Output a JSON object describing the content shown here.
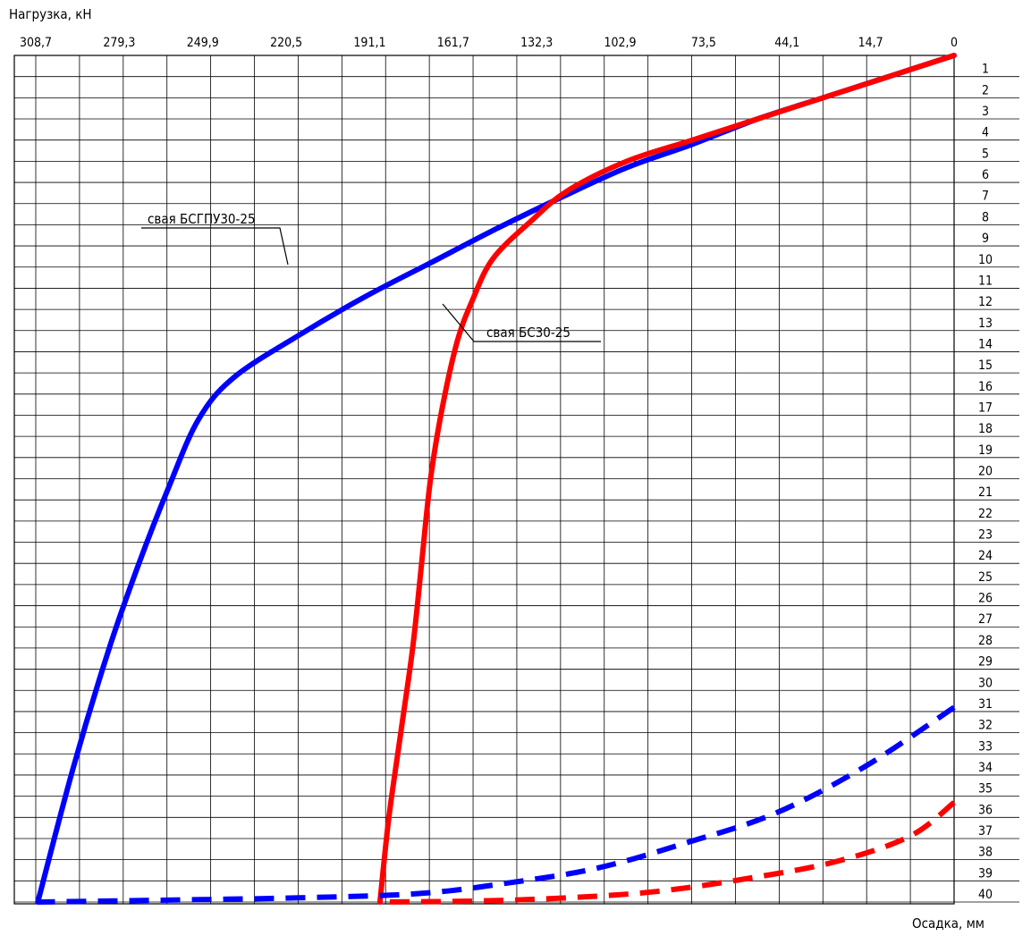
{
  "chart_data": {
    "type": "line",
    "ylabel": "Нагрузка, кН",
    "xlabel": "Осадка, мм",
    "top_ticks": [
      "308,7",
      "279,3",
      "249,9",
      "220,5",
      "191,1",
      "161,7",
      "132,3",
      "102,9",
      "73,5",
      "44,1",
      "14,7",
      "0"
    ],
    "right_ticks": [
      "1",
      "2",
      "3",
      "4",
      "5",
      "6",
      "7",
      "8",
      "9",
      "10",
      "11",
      "12",
      "13",
      "14",
      "15",
      "16",
      "17",
      "18",
      "19",
      "20",
      "21",
      "22",
      "23",
      "24",
      "25",
      "26",
      "27",
      "28",
      "29",
      "30",
      "31",
      "32",
      "33",
      "34",
      "35",
      "36",
      "37",
      "38",
      "39",
      "40"
    ],
    "xlim": [
      308.7,
      0
    ],
    "ylim": [
      0,
      40
    ],
    "grid": true,
    "series": [
      {
        "name": "свая БСГПУ30-25",
        "color": "#0000ff",
        "style": "solid",
        "points": [
          [
            0,
            0
          ],
          [
            22,
            1
          ],
          [
            44,
            2
          ],
          [
            66,
            3
          ],
          [
            88,
            4.2
          ],
          [
            110,
            5.3
          ],
          [
            132,
            6.7
          ],
          [
            154,
            8.2
          ],
          [
            176,
            9.8
          ],
          [
            198,
            11.4
          ],
          [
            220,
            13.2
          ],
          [
            242,
            15.2
          ],
          [
            254,
            17.2
          ],
          [
            264,
            20.4
          ],
          [
            274,
            24
          ],
          [
            284,
            28
          ],
          [
            296,
            33.6
          ],
          [
            308,
            40
          ]
        ]
      },
      {
        "name": "свая БС30-25",
        "color": "#ff0000",
        "style": "solid",
        "points": [
          [
            0,
            0
          ],
          [
            22,
            1
          ],
          [
            44,
            2
          ],
          [
            66,
            3
          ],
          [
            88,
            4
          ],
          [
            110,
            5
          ],
          [
            130,
            6.4
          ],
          [
            142,
            7.8
          ],
          [
            155,
            9.6
          ],
          [
            162,
            11.6
          ],
          [
            167,
            13.5
          ],
          [
            172,
            16.6
          ],
          [
            176,
            20
          ],
          [
            179,
            24
          ],
          [
            182,
            28
          ],
          [
            186,
            32
          ],
          [
            190,
            36
          ],
          [
            193,
            40
          ]
        ]
      },
      {
        "name": "",
        "color": "#0000ff",
        "style": "dashed",
        "points": [
          [
            0,
            30.8
          ],
          [
            30,
            33.6
          ],
          [
            60,
            35.8
          ],
          [
            90,
            37.2
          ],
          [
            120,
            38.4
          ],
          [
            150,
            39.1
          ],
          [
            180,
            39.6
          ],
          [
            220,
            39.8
          ],
          [
            260,
            39.9
          ],
          [
            308,
            40
          ]
        ]
      },
      {
        "name": "",
        "color": "#ff0000",
        "style": "dashed",
        "points": [
          [
            0,
            35.3
          ],
          [
            15,
            36.9
          ],
          [
            40,
            38.1
          ],
          [
            70,
            38.9
          ],
          [
            100,
            39.5
          ],
          [
            130,
            39.8
          ],
          [
            160,
            39.95
          ],
          [
            193,
            40
          ]
        ]
      }
    ],
    "annotations": [
      "свая БСГПУ30-25",
      "свая БС30-25"
    ]
  }
}
